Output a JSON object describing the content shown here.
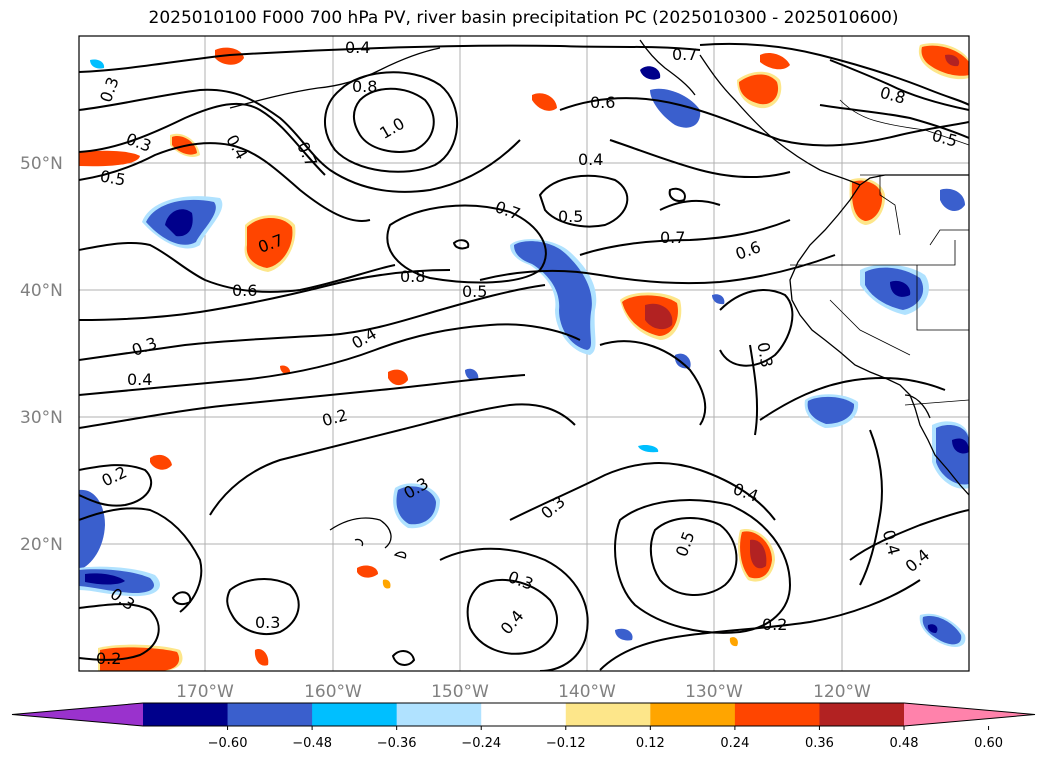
{
  "title": "2025010100 F000 700 hPa PV, river basin precipitation PC (2025010300 - 2025010600)",
  "lat_labels": [
    "50°N",
    "40°N",
    "30°N",
    "20°N"
  ],
  "lon_labels": [
    "170°W",
    "160°W",
    "150°W",
    "140°W",
    "130°W",
    "120°W"
  ],
  "contour_labels": [
    "0.4",
    "0.8",
    "1.0",
    "0.7",
    "0.3",
    "0.4",
    "0.3",
    "0.5",
    "0.7",
    "0.7",
    "0.5",
    "0.8",
    "0.5",
    "0.7",
    "0.6",
    "0.6",
    "0.4",
    "0.3",
    "0.4",
    "0.2",
    "0.2",
    "0.3",
    "0.3",
    "0.3",
    "0.2",
    "0.3",
    "0.4",
    "0.5",
    "0.4",
    "0.4",
    "0.2",
    "0.3",
    "0.4",
    "0.6",
    "0.8",
    "0.5",
    "0.7",
    "0.4",
    "0.3"
  ],
  "colorbar": {
    "ticks": [
      "−0.60",
      "−0.48",
      "−0.36",
      "−0.24",
      "−0.12",
      "0.12",
      "0.24",
      "0.36",
      "0.48",
      "0.60"
    ],
    "colors": [
      "#9a32cd",
      "#00008b",
      "#3a5fcd",
      "#00bfff",
      "#b0e2ff",
      "#ffffff",
      "#fde68a",
      "#ffa500",
      "#ff4500",
      "#b22222",
      "#ff82ab"
    ]
  },
  "legend_colors": {
    "deep_neg": "#00008b",
    "mid_neg": "#3a5fcd",
    "light_neg": "#00bfff",
    "pale_neg": "#b0e2ff",
    "pale_pos": "#fde68a",
    "light_pos": "#ffa500",
    "mid_pos": "#ff4500",
    "deep_pos": "#b22222"
  }
}
